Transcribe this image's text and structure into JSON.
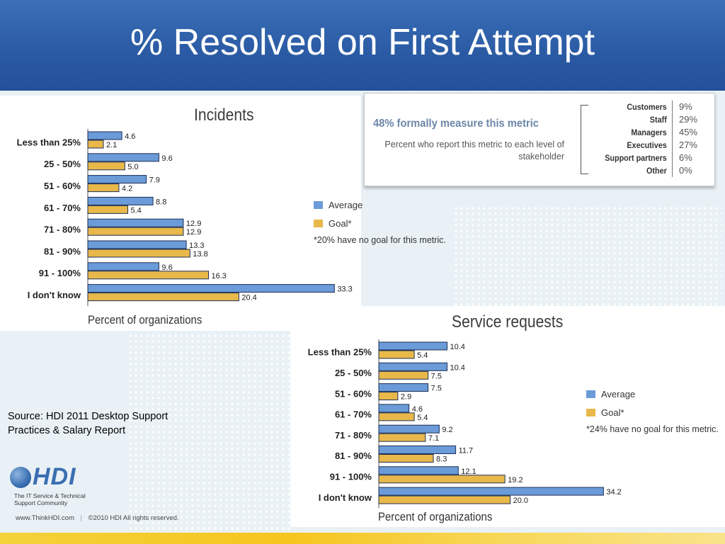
{
  "title": "% Resolved on First Attempt",
  "metric_box": {
    "headline": "48% formally measure this metric",
    "description": "Percent who report this metric to each level of stakeholder",
    "rows": [
      {
        "label": "Customers",
        "value": "9%"
      },
      {
        "label": "Staff",
        "value": "29%"
      },
      {
        "label": "Managers",
        "value": "45%"
      },
      {
        "label": "Executives",
        "value": "27%"
      },
      {
        "label": "Support partners",
        "value": "6%"
      },
      {
        "label": "Other",
        "value": "0%"
      }
    ]
  },
  "source": {
    "line1": "Source: HDI 2011 Desktop Support",
    "line2": "Practices & Salary Report"
  },
  "logo": {
    "text": "HDI",
    "tagline1": "The IT Service & Technical",
    "tagline2": "Support Community"
  },
  "footer": {
    "website": "www.ThinkHDI.com",
    "copyright": "©2010 HDI  All rights reserved."
  },
  "colors": {
    "average": "#6b9bd8",
    "goal": "#e8b84a",
    "header": "#2a5aa3",
    "bottom_bar": "#f6c51f"
  },
  "chart_data": [
    {
      "type": "bar",
      "orientation": "horizontal",
      "title": "Incidents",
      "xlabel": "Percent of organizations",
      "ylabel": "",
      "categories": [
        "Less than 25%",
        "25 - 50%",
        "51 - 60%",
        "61 - 70%",
        "71 - 80%",
        "81 - 90%",
        "91 - 100%",
        "I don't know"
      ],
      "series": [
        {
          "name": "Average",
          "color": "#6b9bd8",
          "values": [
            4.6,
            9.6,
            7.9,
            8.8,
            12.9,
            13.3,
            9.6,
            33.3
          ]
        },
        {
          "name": "Goal*",
          "color": "#e8b84a",
          "values": [
            2.1,
            5.0,
            4.2,
            5.4,
            12.9,
            13.8,
            16.3,
            20.4
          ]
        }
      ],
      "value_labels": {
        "Average": [
          "4.6",
          "9.6",
          "7.9",
          "8.8",
          "12.9",
          "13.3",
          "9.6",
          "33.3"
        ],
        "Goal*": [
          "2.1",
          "5.0",
          "4.2",
          "5.4",
          "12.9",
          "13.8",
          "16.3",
          "20.4"
        ]
      },
      "note": "*20% have no goal for this metric.",
      "legend_position": "right",
      "grid": false
    },
    {
      "type": "bar",
      "orientation": "horizontal",
      "title": "Service requests",
      "xlabel": "Percent of organizations",
      "ylabel": "",
      "categories": [
        "Less than 25%",
        "25 - 50%",
        "51 - 60%",
        "61 - 70%",
        "71 - 80%",
        "81 - 90%",
        "91 - 100%",
        "I don't know"
      ],
      "series": [
        {
          "name": "Average",
          "color": "#6b9bd8",
          "values": [
            10.4,
            10.4,
            7.5,
            4.6,
            9.2,
            11.7,
            12.1,
            34.2
          ]
        },
        {
          "name": "Goal*",
          "color": "#e8b84a",
          "values": [
            5.4,
            7.5,
            2.9,
            5.4,
            7.1,
            8.3,
            19.2,
            20.0
          ]
        }
      ],
      "value_labels": {
        "Average": [
          "10.4",
          "10.4",
          "7.5",
          "4.6",
          "9.2",
          "11.7",
          "12.1",
          "34.2"
        ],
        "Goal*": [
          "5.4",
          "7.5",
          "2.9",
          "5.4",
          "7.1",
          "8.3",
          "19.2",
          "20.0"
        ]
      },
      "note": "*24% have no goal for this metric.",
      "legend_position": "right",
      "grid": false
    }
  ]
}
